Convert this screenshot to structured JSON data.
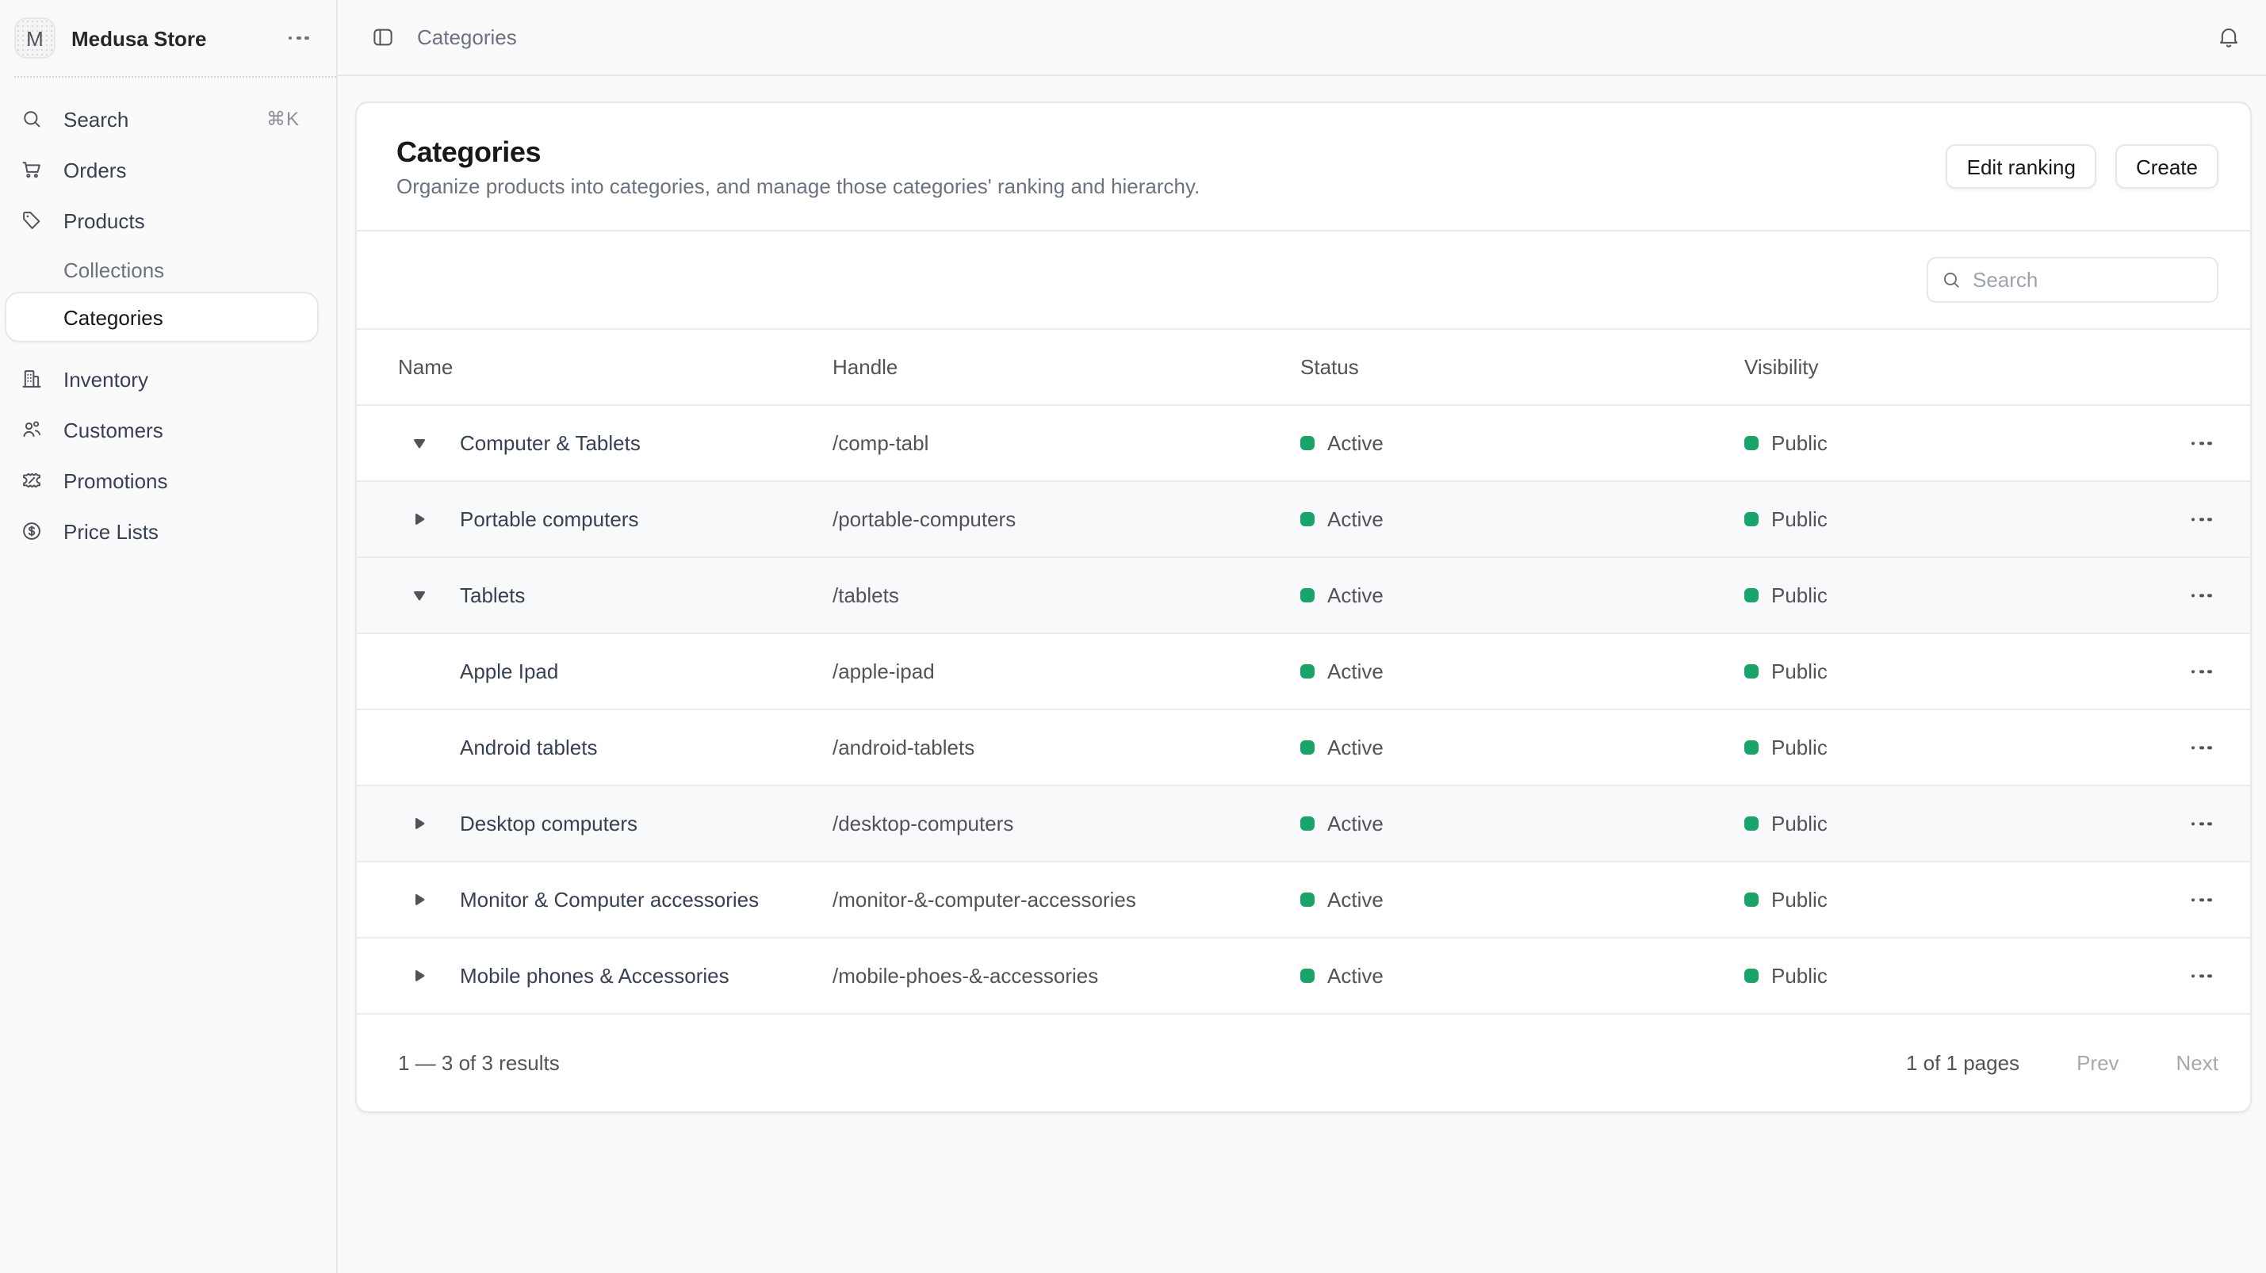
{
  "store": {
    "name": "Medusa Store",
    "initial": "M"
  },
  "topbar": {
    "breadcrumb": "Categories"
  },
  "sidebar": {
    "search_label": "Search",
    "search_shortcut": "⌘K",
    "items": [
      {
        "label": "Orders"
      },
      {
        "label": "Products"
      },
      {
        "label": "Collections"
      },
      {
        "label": "Categories"
      },
      {
        "label": "Inventory"
      },
      {
        "label": "Customers"
      },
      {
        "label": "Promotions"
      },
      {
        "label": "Price Lists"
      }
    ]
  },
  "page": {
    "title": "Categories",
    "subtitle": "Organize products into categories, and manage those categories' ranking and hierarchy.",
    "edit_ranking_label": "Edit ranking",
    "create_label": "Create"
  },
  "filters": {
    "search_placeholder": "Search"
  },
  "table": {
    "columns": {
      "name": "Name",
      "handle": "Handle",
      "status": "Status",
      "visibility": "Visibility"
    },
    "rows": [
      {
        "name": "Computer & Tablets",
        "handle": "/comp-tabl",
        "status": "Active",
        "visibility": "Public",
        "expand": "expanded",
        "shaded": false
      },
      {
        "name": "Portable computers",
        "handle": "/portable-computers",
        "status": "Active",
        "visibility": "Public",
        "expand": "collapsed",
        "shaded": true
      },
      {
        "name": "Tablets",
        "handle": "/tablets",
        "status": "Active",
        "visibility": "Public",
        "expand": "expanded",
        "shaded": true
      },
      {
        "name": "Apple Ipad",
        "handle": "/apple-ipad",
        "status": "Active",
        "visibility": "Public",
        "expand": "none",
        "shaded": false
      },
      {
        "name": "Android tablets",
        "handle": "/android-tablets",
        "status": "Active",
        "visibility": "Public",
        "expand": "none",
        "shaded": false
      },
      {
        "name": "Desktop computers",
        "handle": "/desktop-computers",
        "status": "Active",
        "visibility": "Public",
        "expand": "collapsed",
        "shaded": true
      },
      {
        "name": "Monitor & Computer accessories",
        "handle": "/monitor-&-computer-accessories",
        "status": "Active",
        "visibility": "Public",
        "expand": "collapsed",
        "shaded": false
      },
      {
        "name": "Mobile phones & Accessories",
        "handle": "/mobile-phoes-&-accessories",
        "status": "Active",
        "visibility": "Public",
        "expand": "collapsed",
        "shaded": false
      }
    ]
  },
  "pagination": {
    "results": "1 — 3 of 3 results",
    "pages": "1 of 1 pages",
    "prev_label": "Prev",
    "next_label": "Next"
  },
  "colors": {
    "status_active": "#1aa36a",
    "page_bg": "#fafafa",
    "border": "#e5e7eb",
    "shaded_row": "#f8f9fa"
  },
  "icons": {
    "store-menu": "ellipsis-icon",
    "sidebar_search": "search-icon",
    "sidebar_items": [
      "cart-icon",
      "tag-icon",
      null,
      null,
      "building-icon",
      "users-icon",
      "ticket-percent-icon",
      "dollar-circle-icon"
    ],
    "topbar_left": "panel-left-icon",
    "topbar_right": "bell-icon",
    "row_expanded": "triangle-down-icon",
    "row_collapsed": "triangle-right-icon",
    "row_actions": "ellipsis-icon"
  }
}
